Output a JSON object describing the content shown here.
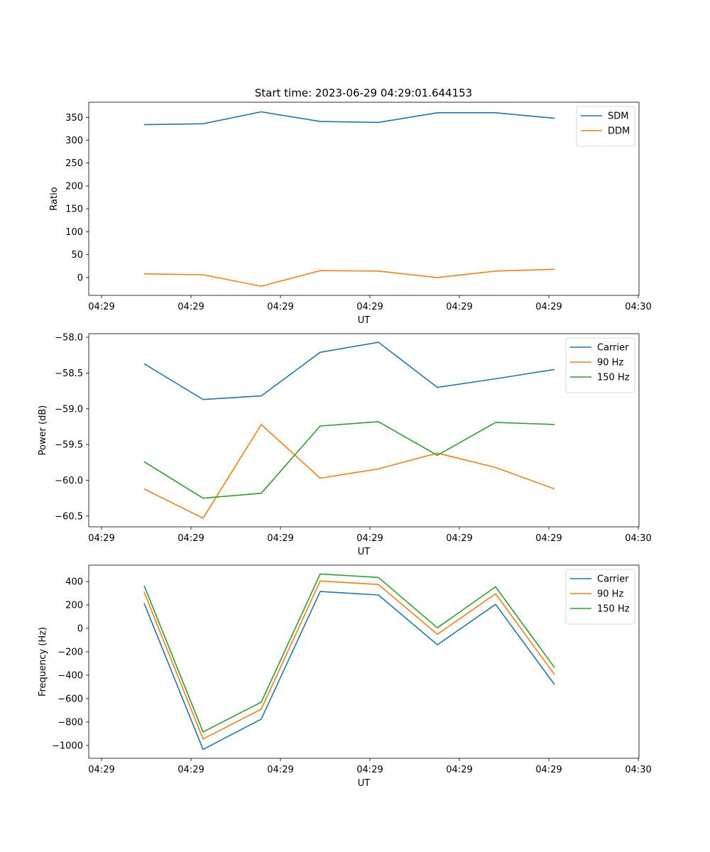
{
  "figure": {
    "title": "Start time: 2023-06-29 04:29:01.644153"
  },
  "x_tick_labels": [
    "04:29",
    "04:29",
    "04:29",
    "04:29",
    "04:29",
    "04:29",
    "04:30"
  ],
  "chart_data": [
    {
      "type": "line",
      "title": "Start time: 2023-06-29 04:29:01.644153",
      "xlabel": "UT",
      "ylabel": "Ratio",
      "y_ticks": [
        0,
        50,
        100,
        150,
        200,
        250,
        300,
        350
      ],
      "y_tick_labels": [
        "0",
        "50",
        "100",
        "150",
        "200",
        "250",
        "300",
        "350"
      ],
      "ylim": [
        -39,
        383
      ],
      "x_tick_labels": [
        "04:29",
        "04:29",
        "04:29",
        "04:29",
        "04:29",
        "04:29",
        "04:30"
      ],
      "legend": "top-right",
      "grid": false,
      "series": [
        {
          "name": "SDM",
          "color": "#1f77b4",
          "values": [
            334,
            336,
            362,
            341,
            339,
            360,
            360,
            348
          ]
        },
        {
          "name": "DDM",
          "color": "#ff7f0e",
          "values": [
            8,
            6,
            -19,
            15,
            14,
            0,
            14,
            18
          ]
        }
      ]
    },
    {
      "type": "line",
      "xlabel": "UT",
      "ylabel": "Power (dB)",
      "y_ticks": [
        -60.5,
        -60.0,
        -59.5,
        -59.0,
        -58.5,
        -58.0
      ],
      "y_tick_labels": [
        "−60.5",
        "−60.0",
        "−59.5",
        "−59.0",
        "−58.5",
        "−58.0"
      ],
      "ylim": [
        -60.65,
        -57.95
      ],
      "x_tick_labels": [
        "04:29",
        "04:29",
        "04:29",
        "04:29",
        "04:29",
        "04:29",
        "04:30"
      ],
      "legend": "top-right",
      "grid": false,
      "series": [
        {
          "name": "Carrier",
          "color": "#1f77b4",
          "values": [
            -58.37,
            -58.87,
            -58.82,
            -58.21,
            -58.07,
            -58.7,
            -58.58,
            -58.45
          ]
        },
        {
          "name": "90 Hz",
          "color": "#ff7f0e",
          "values": [
            -60.12,
            -60.53,
            -59.22,
            -59.97,
            -59.84,
            -59.62,
            -59.82,
            -60.12
          ]
        },
        {
          "name": "150 Hz",
          "color": "#2ca02c",
          "values": [
            -59.74,
            -60.25,
            -60.18,
            -59.24,
            -59.18,
            -59.65,
            -59.19,
            -59.22
          ]
        }
      ]
    },
    {
      "type": "line",
      "xlabel": "UT",
      "ylabel": "Frequency (Hz)",
      "y_ticks": [
        -1000,
        -800,
        -600,
        -400,
        -200,
        0,
        200,
        400
      ],
      "y_tick_labels": [
        "−1000",
        "−800",
        "−600",
        "−400",
        "−200",
        "0",
        "200",
        "400"
      ],
      "ylim": [
        -1110,
        540
      ],
      "x_tick_labels": [
        "04:29",
        "04:29",
        "04:29",
        "04:29",
        "04:29",
        "04:29",
        "04:30"
      ],
      "legend": "top-right",
      "grid": false,
      "series": [
        {
          "name": "Carrier",
          "color": "#1f77b4",
          "values": [
            215,
            -1035,
            -775,
            315,
            285,
            -140,
            205,
            -480
          ]
        },
        {
          "name": "90 Hz",
          "color": "#ff7f0e",
          "values": [
            310,
            -945,
            -690,
            405,
            375,
            -50,
            295,
            -395
          ]
        },
        {
          "name": "150 Hz",
          "color": "#2ca02c",
          "values": [
            365,
            -885,
            -630,
            465,
            435,
            5,
            355,
            -335
          ]
        }
      ]
    }
  ]
}
